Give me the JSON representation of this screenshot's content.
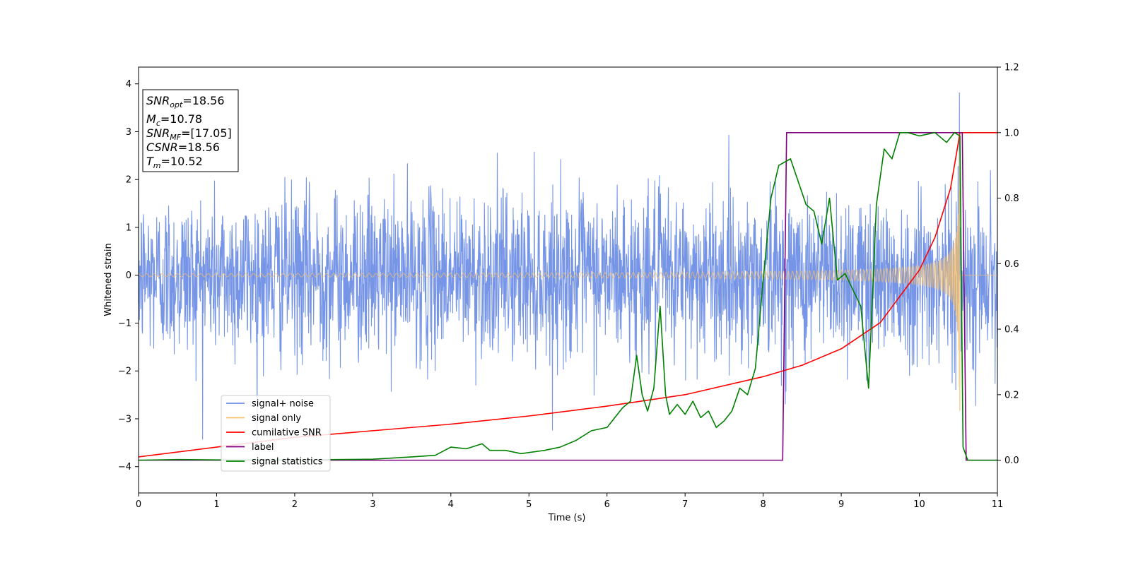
{
  "chart_data": {
    "type": "line",
    "xlabel": "Time (s)",
    "ylabel": "Whitened strain",
    "xlim": [
      0,
      11
    ],
    "ylim_left": [
      -4.55,
      4.35
    ],
    "ylim_right": [
      -0.1,
      1.2
    ],
    "xticks": [
      "0",
      "1",
      "2",
      "3",
      "4",
      "5",
      "6",
      "7",
      "8",
      "9",
      "10",
      "11"
    ],
    "yticks_left": [
      "4",
      "3",
      "2",
      "1",
      "0",
      "−1",
      "−2",
      "−3",
      "−4"
    ],
    "yticks_right": [
      "1.2",
      "1.0",
      "0.8",
      "0.6",
      "0.4",
      "0.2",
      "0.0"
    ],
    "grid": false,
    "legend_position": "lower-left",
    "series": [
      {
        "name": "signal+ noise",
        "color": "#6f8fe6",
        "axis": "left",
        "kind": "noise",
        "amplitude": 3.2
      },
      {
        "name": "signal only",
        "color": "#f5c06a",
        "axis": "left",
        "kind": "chirp",
        "t_merge": 10.52,
        "x_start": 0,
        "x_end": 11
      },
      {
        "name": "cumilative SNR",
        "color": "#ff0000",
        "axis": "right",
        "kind": "line",
        "x": [
          0,
          1,
          2,
          3,
          4,
          5,
          6,
          7,
          8,
          8.5,
          9,
          9.5,
          10,
          10.2,
          10.4,
          10.5,
          10.52,
          11
        ],
        "y": [
          0.01,
          0.04,
          0.07,
          0.09,
          0.11,
          0.135,
          0.165,
          0.2,
          0.255,
          0.29,
          0.34,
          0.42,
          0.58,
          0.68,
          0.83,
          0.97,
          1.0,
          1.0
        ]
      },
      {
        "name": "label",
        "color": "#800080",
        "axis": "right",
        "kind": "line",
        "x": [
          0,
          8.25,
          8.3,
          10.55,
          10.6,
          11
        ],
        "y": [
          0,
          0,
          1,
          1,
          0,
          0
        ]
      },
      {
        "name": "signal statistics",
        "color": "#008000",
        "axis": "right",
        "kind": "line",
        "x": [
          0,
          0.5,
          1,
          2,
          3,
          3.5,
          3.8,
          4.0,
          4.2,
          4.4,
          4.5,
          4.7,
          4.9,
          5.2,
          5.4,
          5.6,
          5.8,
          6.0,
          6.2,
          6.3,
          6.38,
          6.45,
          6.52,
          6.6,
          6.68,
          6.75,
          6.8,
          6.9,
          7.0,
          7.1,
          7.2,
          7.3,
          7.4,
          7.5,
          7.6,
          7.7,
          7.8,
          7.9,
          8.0,
          8.1,
          8.2,
          8.35,
          8.45,
          8.55,
          8.65,
          8.75,
          8.85,
          8.95,
          9.05,
          9.15,
          9.25,
          9.35,
          9.45,
          9.55,
          9.65,
          9.75,
          9.85,
          10.0,
          10.2,
          10.35,
          10.45,
          10.52,
          10.56,
          10.62,
          11
        ],
        "y": [
          0,
          0.002,
          0.001,
          0.001,
          0.003,
          0.01,
          0.015,
          0.04,
          0.035,
          0.05,
          0.03,
          0.03,
          0.02,
          0.03,
          0.04,
          0.06,
          0.09,
          0.1,
          0.16,
          0.18,
          0.32,
          0.2,
          0.15,
          0.22,
          0.47,
          0.2,
          0.14,
          0.17,
          0.14,
          0.18,
          0.13,
          0.15,
          0.1,
          0.12,
          0.15,
          0.22,
          0.2,
          0.28,
          0.55,
          0.8,
          0.9,
          0.92,
          0.85,
          0.78,
          0.76,
          0.66,
          0.8,
          0.55,
          0.57,
          0.52,
          0.47,
          0.22,
          0.78,
          0.95,
          0.92,
          1.0,
          1.0,
          0.99,
          1.0,
          0.97,
          1.0,
          0.99,
          0.04,
          0.0,
          0.0
        ]
      }
    ]
  },
  "info_box": {
    "snr_opt": {
      "base": "SNR",
      "sub": "opt",
      "value": "=18.56"
    },
    "mc": {
      "base": "M",
      "sub": "c",
      "value": "=10.78"
    },
    "snr_mf": {
      "base": "SNR",
      "sub": "MF",
      "value": "=[17.05]"
    },
    "csnr": {
      "base": "CSNR",
      "value": "=18.56"
    },
    "tm": {
      "base": "T",
      "sub": "m",
      "value": "=10.52"
    }
  }
}
